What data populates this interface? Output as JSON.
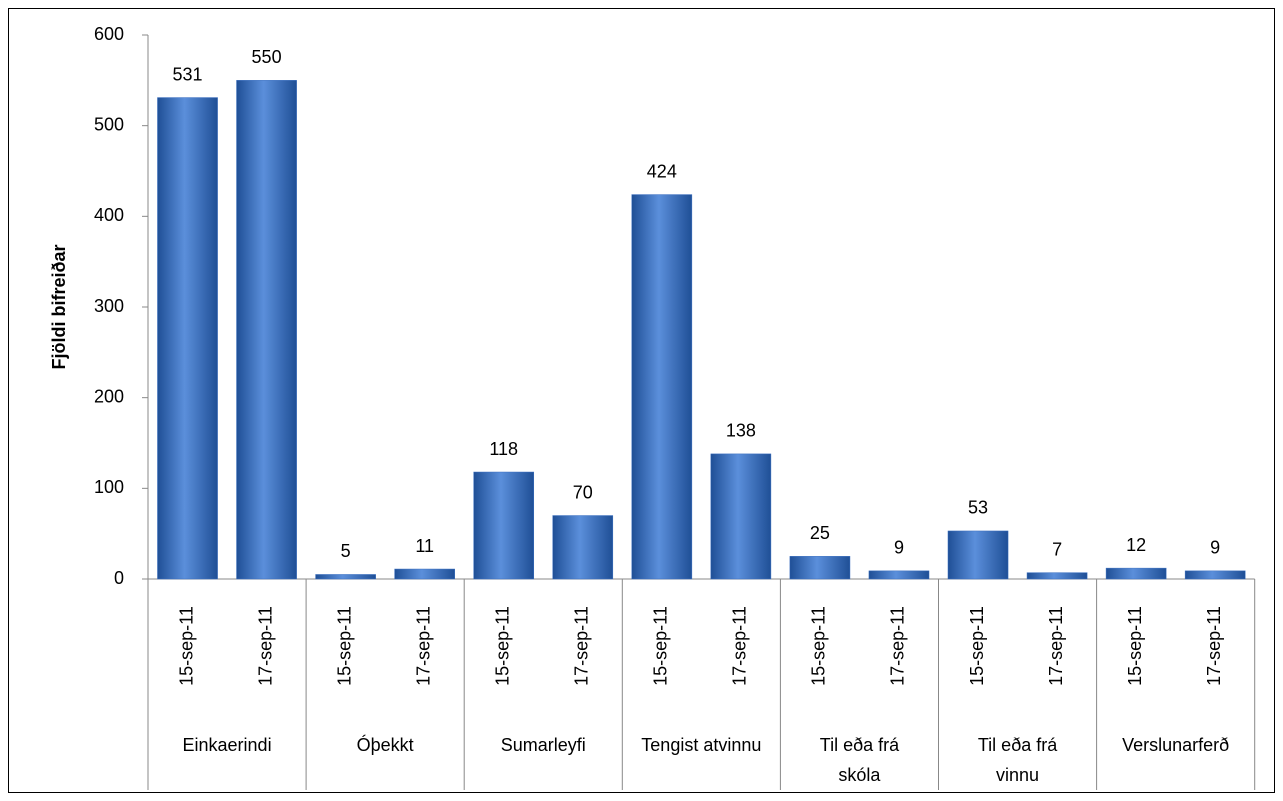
{
  "chart_data": {
    "type": "bar",
    "y_axis_label": "Fjöldi bifreiðar",
    "ylim": [
      0,
      600
    ],
    "yticks": [
      0,
      100,
      200,
      300,
      400,
      500,
      600
    ],
    "color": "#3b6fc0",
    "groups": [
      {
        "name": "Einkaerindi",
        "categories": [
          "15-sep-11",
          "17-sep-11"
        ],
        "values": [
          531,
          550
        ]
      },
      {
        "name": "Óþekkt",
        "categories": [
          "15-sep-11",
          "17-sep-11"
        ],
        "values": [
          5,
          11
        ]
      },
      {
        "name": "Sumarleyfi",
        "categories": [
          "15-sep-11",
          "17-sep-11"
        ],
        "values": [
          118,
          70
        ]
      },
      {
        "name": "Tengist atvinnu",
        "categories": [
          "15-sep-11",
          "17-sep-11"
        ],
        "values": [
          424,
          138
        ]
      },
      {
        "name": "Til eða frá skóla",
        "categories": [
          "15-sep-11",
          "17-sep-11"
        ],
        "values": [
          25,
          9
        ]
      },
      {
        "name": "Til eða frá vinnu",
        "categories": [
          "15-sep-11",
          "17-sep-11"
        ],
        "values": [
          53,
          7
        ]
      },
      {
        "name": "Verslunarferð",
        "categories": [
          "15-sep-11",
          "17-sep-11"
        ],
        "values": [
          12,
          9
        ]
      }
    ]
  }
}
